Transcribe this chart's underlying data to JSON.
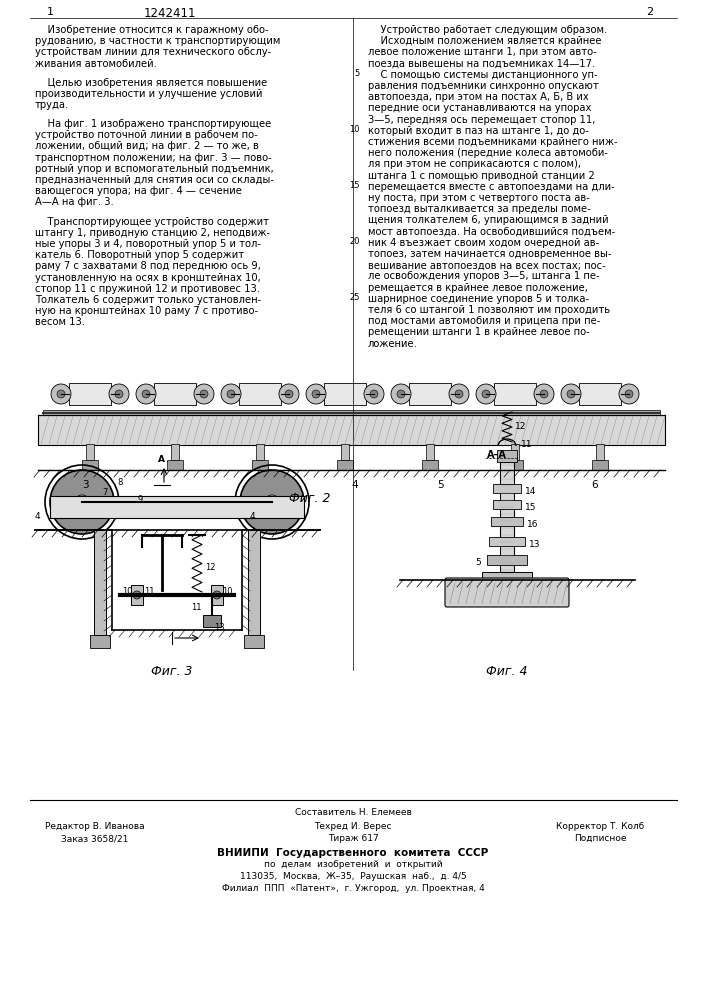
{
  "patent_number": "1242411",
  "page_left": "1",
  "page_right": "2",
  "background_color": "#ffffff",
  "text_color": "#000000",
  "left_column_text": [
    "    Изобретение относится к гаражному обо-",
    "рудованию, в частности к транспортирующим",
    "устройствам линии для технического обслу-",
    "живания автомобилей.",
    "",
    "    Целью изобретения является повышение",
    "производительности и улучшение условий",
    "труда.",
    "",
    "    На фиг. 1 изображено транспортирующее",
    "устройство поточной линии в рабочем по-",
    "ложении, общий вид; на фиг. 2 — то же, в",
    "транспортном положении; на фиг. 3 — пово-",
    "ротный упор и вспомогательный подъемник,",
    "предназначенный для снятия оси со склады-",
    "вающегося упора; на фиг. 4 — сечение",
    "А—А на фиг. 3.",
    "",
    "    Транспортирующее устройство содержит",
    "штангу 1, приводную станцию 2, неподвиж-",
    "ные упоры 3 и 4, поворотный упор 5 и тол-",
    "катель 6. Поворотный упор 5 содержит",
    "раму 7 с захватами 8 под переднюю ось 9,",
    "установленную на осях в кронштейнах 10,",
    "стопор 11 с пружиной 12 и противовес 13.",
    "Толкатель 6 содержит только установлен-",
    "ную на кронштейнах 10 раму 7 с противо-",
    "весом 13."
  ],
  "right_column_text": [
    "    Устройство работает следующим образом.",
    "    Исходным положением является крайнее",
    "левое положение штанги 1, при этом авто-",
    "поезда вывешены на подъемниках 14—17.",
    "    С помощью системы дистанционного уп-",
    "равления подъемники синхронно опускают",
    "автопоезда, при этом на постах А, Б, В их",
    "передние оси устанавливаются на упорах",
    "3—5, передняя ось перемещает стопор 11,",
    "который входит в паз на штанге 1, до до-",
    "стижения всеми подъемниками крайнего ниж-",
    "него положения (передние колеса автомоби-",
    "ля при этом не соприкасаются с полом),",
    "штанга 1 с помощью приводной станции 2",
    "перемещается вместе с автопоездами на дли-",
    "ну поста, при этом с четвертого поста ав-",
    "топоезд выталкивается за пределы поме-",
    "щения толкателем 6, упирающимся в задний",
    "мост автопоезда. На освободившийся подъем-",
    "ник 4 въезжает своим ходом очередной ав-",
    "топоез, затем начинается одновременное вы-",
    "вешивание автопоездов на всех постах; пос-",
    "ле освобождения упоров 3—5, штанга 1 пе-",
    "ремещается в крайнее левое положение,",
    "шарнирное соединение упоров 5 и толка-",
    "теля 6 со штангой 1 позволяют им проходить",
    "под мостами автомобиля и прицепа при пе-",
    "ремещении штанги 1 в крайнее левое по-",
    "ложение."
  ],
  "fig2_label": "Фиг. 2",
  "fig3_label": "Фиг. 3",
  "fig4_label": "Фиг. 4"
}
